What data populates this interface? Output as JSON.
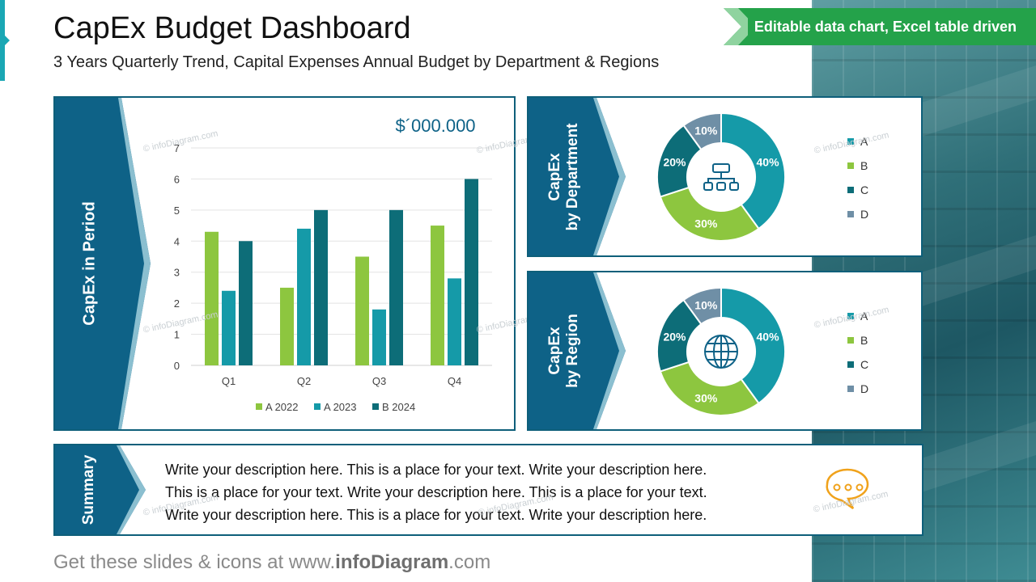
{
  "header": {
    "title": "CapEx Budget Dashboard",
    "subtitle": "3 Years Quarterly Trend, Capital Expenses Annual Budget by Department & Regions",
    "ribbon": "Editable data chart, Excel table driven"
  },
  "panels": {
    "period_label": "CapEx in Period",
    "department_label_1": "CapEx",
    "department_label_2": "by Department",
    "region_label_1": "CapEx",
    "region_label_2": "by Region",
    "summary_label": "Summary"
  },
  "summary": {
    "lines": [
      "Write your description here. This is a place for your text. Write your description here.",
      "This is a place for your text. Write your description here. This is a place for your text.",
      "Write your description here. This is a place for your text. Write your description here."
    ]
  },
  "footer": {
    "pre": "Get these slides & icons at www.",
    "brand": "infoDiagram",
    "post": ".com"
  },
  "watermark": "© infoDiagram.com",
  "colors": {
    "lime": "#8dc63f",
    "teal": "#159aa8",
    "dark_teal": "#0d6d78",
    "slate": "#6f8fa6",
    "navy": "#0e6287"
  },
  "icons": {
    "department": "org-chart-icon",
    "region": "globe-icon",
    "summary": "speech-bubble-icon"
  },
  "chart_data": [
    {
      "type": "bar",
      "title": "$´000.000",
      "categories": [
        "Q1",
        "Q2",
        "Q3",
        "Q4"
      ],
      "ylim": [
        0,
        7
      ],
      "yticks": [
        0,
        1,
        2,
        3,
        4,
        5,
        6,
        7
      ],
      "grid": true,
      "legend": "bottom",
      "series": [
        {
          "name": "A 2022",
          "color": "#8dc63f",
          "values": [
            4.3,
            2.5,
            3.5,
            4.5
          ]
        },
        {
          "name": "A 2023",
          "color": "#159aa8",
          "values": [
            2.4,
            4.4,
            1.8,
            2.8
          ]
        },
        {
          "name": "B 2024",
          "color": "#0d6d78",
          "values": [
            4.0,
            5.0,
            5.0,
            6.0
          ]
        }
      ]
    },
    {
      "type": "pie",
      "legend": "right",
      "labels": [
        "A",
        "B",
        "C",
        "D"
      ],
      "values": [
        40,
        30,
        20,
        10
      ],
      "value_labels": [
        "40%",
        "30%",
        "20%",
        "10%"
      ],
      "colors": [
        "#159aa8",
        "#8dc63f",
        "#0d6d78",
        "#6f8fa6"
      ]
    },
    {
      "type": "pie",
      "legend": "right",
      "labels": [
        "A",
        "B",
        "C",
        "D"
      ],
      "values": [
        40,
        30,
        20,
        10
      ],
      "value_labels": [
        "40%",
        "30%",
        "20%",
        "10%"
      ],
      "colors": [
        "#159aa8",
        "#8dc63f",
        "#0d6d78",
        "#6f8fa6"
      ]
    }
  ]
}
